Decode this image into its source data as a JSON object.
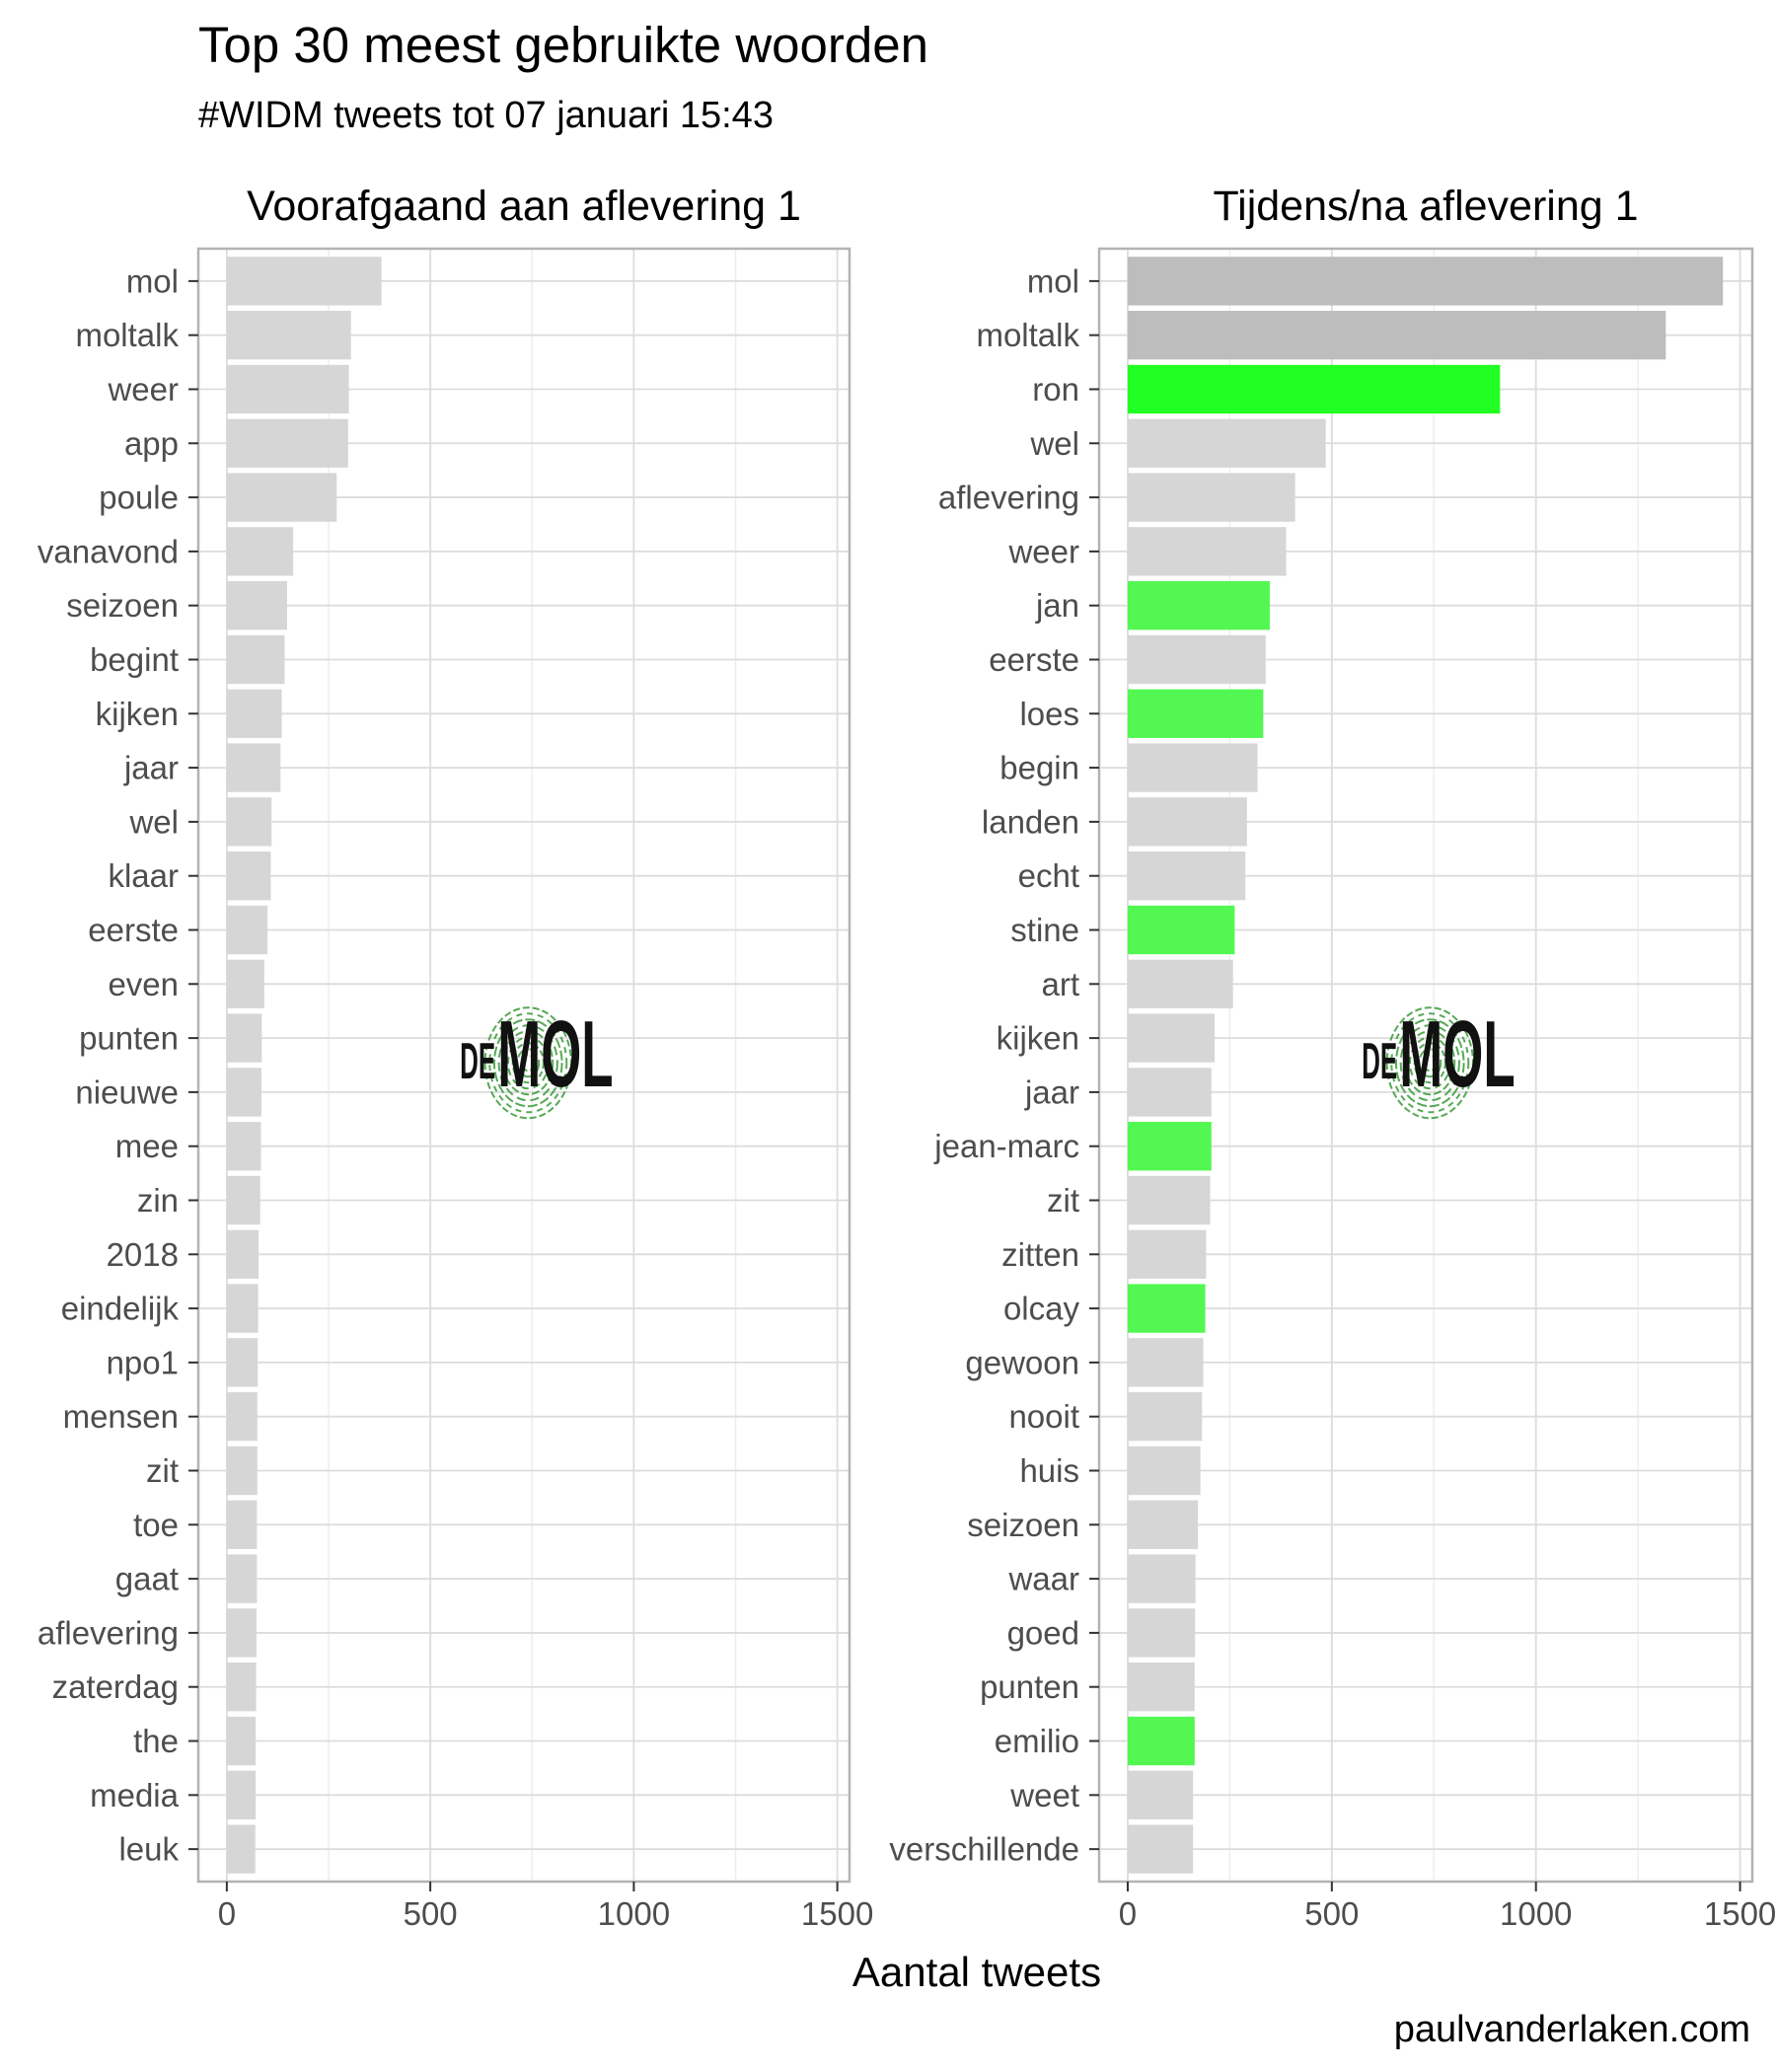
{
  "title": "Top 30 meest gebruikte woorden",
  "subtitle": "#WIDM tweets tot 07 januari 15:43",
  "x_axis_label": "Aantal tweets",
  "caption": "paulvanderlaken.com",
  "colors": {
    "bar_default": "#d6d6d6",
    "bar_top": "#bdbdbd",
    "bar_ron": "#22ff22",
    "bar_candidate": "#52f752",
    "grid_major": "#dcdcdc",
    "grid_minor": "#eeeeee",
    "panel_border": "#b3b3b3",
    "axis_text": "#4d4d4d"
  },
  "logo": {
    "prefix": "DE",
    "word": "MOL",
    "icon": "fingerprint-icon"
  },
  "chart_data": [
    {
      "type": "bar",
      "orientation": "horizontal",
      "panel_title": "Voorafgaand aan aflevering 1",
      "xlabel": "Aantal tweets",
      "xlim": [
        -70,
        1530
      ],
      "xticks": [
        0,
        500,
        1000,
        1500
      ],
      "grid": true,
      "categories": [
        "mol",
        "moltalk",
        "weer",
        "app",
        "poule",
        "vanavond",
        "seizoen",
        "begint",
        "kijken",
        "jaar",
        "wel",
        "klaar",
        "eerste",
        "even",
        "punten",
        "nieuwe",
        "mee",
        "zin",
        "2018",
        "eindelijk",
        "npo1",
        "mensen",
        "zit",
        "toe",
        "gaat",
        "aflevering",
        "zaterdag",
        "the",
        "media",
        "leuk"
      ],
      "values": [
        380,
        305,
        300,
        298,
        270,
        163,
        148,
        142,
        135,
        132,
        110,
        108,
        100,
        92,
        86,
        85,
        84,
        82,
        78,
        77,
        76,
        75,
        75,
        74,
        74,
        73,
        72,
        71,
        71,
        70
      ],
      "highlight": [
        "none",
        "none",
        "none",
        "none",
        "none",
        "none",
        "none",
        "none",
        "none",
        "none",
        "none",
        "none",
        "none",
        "none",
        "none",
        "none",
        "none",
        "none",
        "none",
        "none",
        "none",
        "none",
        "none",
        "none",
        "none",
        "none",
        "none",
        "none",
        "none",
        "none"
      ]
    },
    {
      "type": "bar",
      "orientation": "horizontal",
      "panel_title": "Tijdens/na aflevering 1",
      "xlabel": "Aantal tweets",
      "xlim": [
        -70,
        1530
      ],
      "xticks": [
        0,
        500,
        1000,
        1500
      ],
      "grid": true,
      "categories": [
        "mol",
        "moltalk",
        "ron",
        "wel",
        "aflevering",
        "weer",
        "jan",
        "eerste",
        "loes",
        "begin",
        "landen",
        "echt",
        "stine",
        "art",
        "kijken",
        "jaar",
        "jean-marc",
        "zit",
        "zitten",
        "olcay",
        "gewoon",
        "nooit",
        "huis",
        "seizoen",
        "waar",
        "goed",
        "punten",
        "emilio",
        "weet",
        "verschillende"
      ],
      "values": [
        1458,
        1318,
        912,
        485,
        410,
        388,
        348,
        338,
        332,
        318,
        292,
        288,
        262,
        258,
        213,
        205,
        205,
        202,
        192,
        190,
        185,
        182,
        178,
        172,
        166,
        165,
        164,
        164,
        160,
        160
      ],
      "highlight": [
        "top",
        "top",
        "ron",
        "none",
        "none",
        "none",
        "candidate",
        "none",
        "candidate",
        "none",
        "none",
        "none",
        "candidate",
        "none",
        "none",
        "none",
        "candidate",
        "none",
        "none",
        "candidate",
        "none",
        "none",
        "none",
        "none",
        "none",
        "none",
        "none",
        "candidate",
        "none",
        "none"
      ]
    }
  ]
}
